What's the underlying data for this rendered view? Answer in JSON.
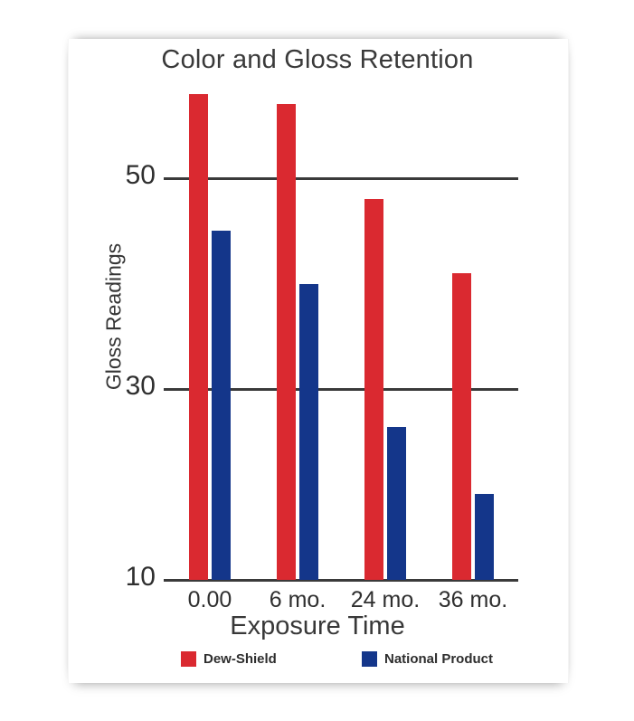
{
  "chart_data": {
    "type": "bar",
    "title": "Color and Gloss Retention",
    "xlabel": "Exposure Time",
    "ylabel": "Gloss Readings",
    "categories": [
      "0.00",
      "6 mo.",
      "24 mo.",
      "36 mo."
    ],
    "series": [
      {
        "name": "Dew-Shield",
        "color": "#da2930",
        "values": [
          58,
          57,
          48,
          41
        ]
      },
      {
        "name": "National Product",
        "color": "#14368a",
        "values": [
          45,
          40,
          26,
          19
        ]
      }
    ],
    "y_ticks": [
      50,
      30,
      10
    ],
    "ylim": [
      10,
      60
    ],
    "grid": true,
    "legend_position": "bottom",
    "axis_line_color": "#3a3a3a"
  }
}
